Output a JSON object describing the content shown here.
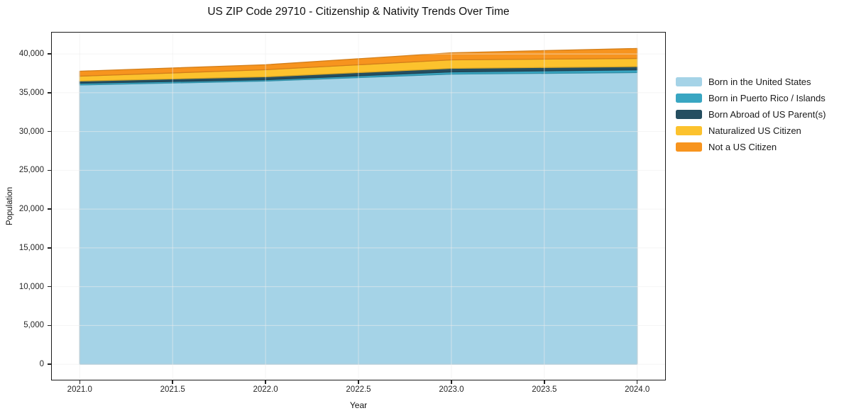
{
  "title": "US ZIP Code 29710 - Citizenship & Nativity Trends Over Time",
  "chart_data": {
    "type": "area",
    "stacked": true,
    "title": "US ZIP Code 29710 - Citizenship & Nativity Trends Over Time",
    "xlabel": "Year",
    "ylabel": "Population",
    "x": [
      2021,
      2022,
      2023,
      2024
    ],
    "series": [
      {
        "name": "Born in the United States",
        "color": "#a5d3e7",
        "values": [
          36000,
          36500,
          37400,
          37600
        ]
      },
      {
        "name": "Born in Puerto Rico / Islands",
        "color": "#39a6c2",
        "values": [
          220,
          180,
          280,
          350
        ]
      },
      {
        "name": "Born Abroad of US Parent(s)",
        "color": "#254e60",
        "values": [
          280,
          370,
          460,
          420
        ]
      },
      {
        "name": "Naturalized US Citizen",
        "color": "#fcc22d",
        "values": [
          630,
          910,
          1090,
          1050
        ]
      },
      {
        "name": "Not a US Citizen",
        "color": "#f7941e",
        "values": [
          640,
          640,
          920,
          1280
        ]
      }
    ],
    "x_tick_labels": [
      "2021.0",
      "2021.5",
      "2022.0",
      "2022.5",
      "2023.0",
      "2023.5",
      "2024.0"
    ],
    "x_tick_values": [
      2021,
      2021.5,
      2022,
      2022.5,
      2023,
      2023.5,
      2024
    ],
    "y_tick_labels": [
      "0",
      "5,000",
      "10,000",
      "15,000",
      "20,000",
      "25,000",
      "30,000",
      "35,000",
      "40,000"
    ],
    "y_tick_values": [
      0,
      5000,
      10000,
      15000,
      20000,
      25000,
      30000,
      35000,
      40000
    ],
    "xlim": [
      2020.85,
      2024.15
    ],
    "ylim": [
      -2000,
      42750
    ],
    "grid": true,
    "grid_color": "#ececec",
    "spine_color": "#1b1b1b",
    "legend_position": "right"
  }
}
